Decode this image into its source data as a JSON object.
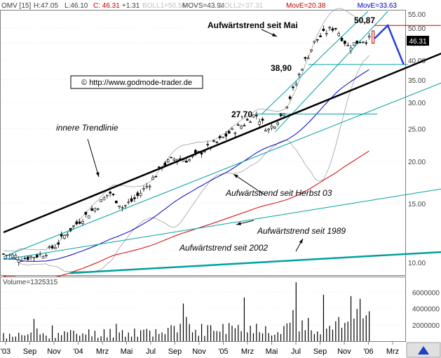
{
  "header": {
    "symbol": "OMV [15]",
    "high": "H:47.05",
    "low": "L:46.10",
    "close": "C: 46.31",
    "change": "+1.31",
    "boll1": "BOLL1=50.56",
    "movs": "MOVS=43.94",
    "boll2": "BOLL2=37.31",
    "move1": "MovE=20.38",
    "move2": "MovE=33.63"
  },
  "volume_label": "Volume=1325315",
  "copyright": "© http://www.godmode-trader.de",
  "current_price_label": "46.31",
  "colors": {
    "candle": "#000000",
    "bollinger": "#a0a0a0",
    "movs": "#00a0c0",
    "move_slow": "#d00000",
    "move_fast": "#0000c0",
    "trendline_main": "#000000",
    "trendline_teal": "#00a0a0",
    "forecast": "#2040e0",
    "resistance": "#c00000",
    "volume": "#000000"
  },
  "chart_data": [
    {
      "type": "candlestick",
      "title": "",
      "y_scale": "log",
      "ylim": [
        9.3,
        56
      ],
      "y_ticks": [
        "55.00",
        "50.00",
        "45.00",
        "40.00",
        "35.00",
        "30.00",
        "25.00",
        "20.00",
        "15.00",
        "10.00"
      ],
      "x_ticks": [
        "2003",
        "Sep",
        "Nov",
        "'04",
        "Mrz",
        "Mai",
        "Jul",
        "Sep",
        "Nov",
        "'05",
        "Mrz",
        "Mai",
        "Jul",
        "Sep",
        "Nov",
        "'06",
        "Mrz"
      ],
      "x_tick_display": [
        "'03",
        "Sep",
        "Nov",
        "'04",
        "Mrz",
        "Mai",
        "Jul",
        "Sep",
        "Nov",
        "'05",
        "Mrz",
        "Mai",
        "Jul",
        "Sep",
        "Nov",
        "'06",
        "Mrz"
      ],
      "price_anchors": {
        "months_from_jul_2003": [
          0,
          1.5,
          3,
          4,
          5,
          6,
          7,
          8,
          9,
          10,
          11,
          12,
          13,
          14,
          15,
          16,
          17,
          18,
          19,
          20,
          21,
          22,
          22.6,
          23,
          23.5,
          24,
          25,
          26,
          27,
          27.7
        ],
        "close": [
          10.6,
          10.3,
          10.6,
          11.3,
          12.5,
          13.6,
          14.6,
          16.2,
          14.6,
          15.6,
          17.2,
          19.5,
          20.5,
          20.2,
          21.5,
          22.6,
          24.3,
          25.6,
          27.7,
          24.8,
          27.5,
          33.5,
          38.9,
          41.5,
          45.5,
          47.5,
          50.5,
          44.0,
          46.0,
          46.31
        ]
      },
      "forecast": {
        "x_months": [
          28,
          29,
          30.2
        ],
        "y": [
          46.5,
          50.87,
          38.9
        ]
      },
      "annotations": [
        {
          "text": "Aufwärtstrend seit Mai",
          "kind": "label"
        },
        {
          "text": "50,87",
          "kind": "level",
          "value": 50.87
        },
        {
          "text": "38,90",
          "kind": "level",
          "value": 38.9
        },
        {
          "text": "27,70",
          "kind": "level",
          "value": 27.7
        },
        {
          "text": "innere Trendlinie",
          "kind": "label"
        },
        {
          "text": "Aufwärtstrend seit Herbst 03",
          "kind": "label"
        },
        {
          "text": "Aufwärtstrend seit 1989",
          "kind": "label"
        },
        {
          "text": "Aufwärtstrend seit 2002",
          "kind": "label"
        }
      ],
      "trendlines": {
        "main_black": {
          "x_months": [
            0,
            34
          ],
          "y": [
            12.3,
            43.5
          ]
        },
        "aufwaerts_seit_mai_upper": {
          "x_months": [
            19.5,
            27.5
          ],
          "y": [
            27.7,
            56
          ]
        },
        "aufwaerts_seit_mai_lower": {
          "x_months": [
            20.5,
            29
          ],
          "y": [
            24.5,
            56
          ]
        },
        "herbst03": {
          "x_months": [
            0,
            34
          ],
          "y": [
            10.4,
            35.5
          ]
        },
        "seit_2002": {
          "x_months": [
            0,
            34
          ],
          "y": [
            10.2,
            16.8
          ]
        },
        "seit_1989": {
          "x_months": [
            5,
            34
          ],
          "y": [
            9.3,
            10.8
          ]
        },
        "resistance_50_87": {
          "x_months": [
            28,
            33
          ],
          "y": [
            50.87,
            50.87
          ]
        },
        "level_27_70": {
          "x_months": [
            19,
            28.2
          ],
          "y": [
            27.7,
            27.7
          ]
        },
        "level_38_90": {
          "x_months": [
            23,
            30.5
          ],
          "y": [
            38.9,
            38.9
          ]
        }
      }
    },
    {
      "type": "bar",
      "title": "",
      "series_name": "Volume",
      "y_ticks": [
        "6000000",
        "4000000",
        "2000000"
      ],
      "ylim": [
        0,
        7500000
      ]
    }
  ]
}
